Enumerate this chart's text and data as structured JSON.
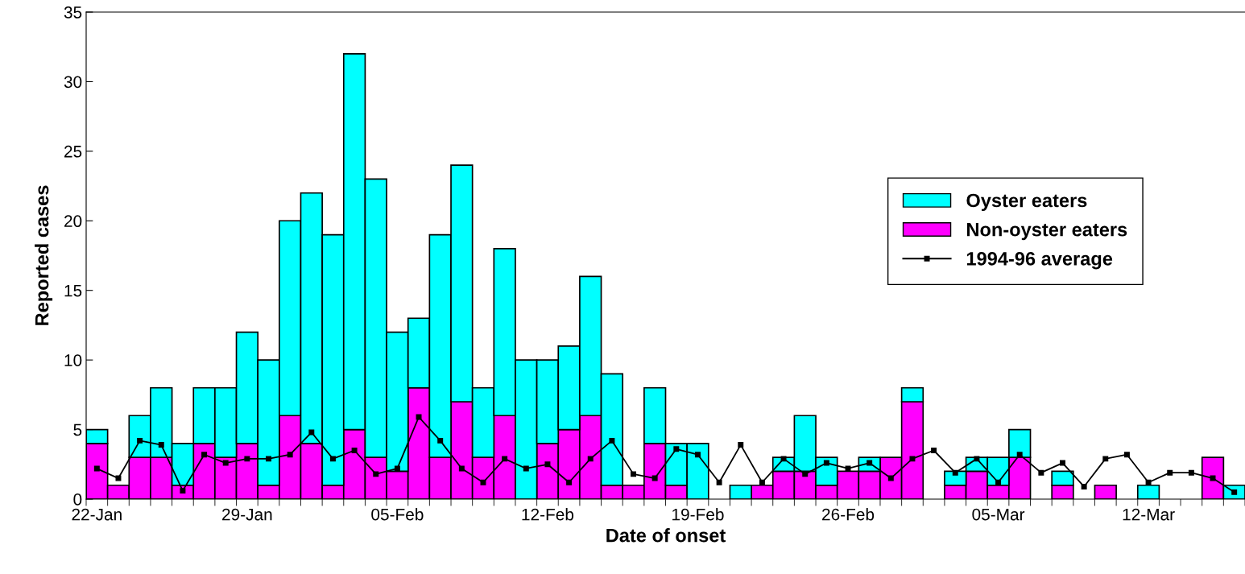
{
  "chart_data": {
    "type": "bar",
    "stacked": true,
    "xlabel": "Date of onset",
    "ylabel": "Reported cases",
    "categories": [
      "22-Jan",
      null,
      null,
      null,
      null,
      null,
      null,
      "29-Jan",
      null,
      null,
      null,
      null,
      null,
      null,
      "05-Feb",
      null,
      null,
      null,
      null,
      null,
      null,
      "12-Feb",
      null,
      null,
      null,
      null,
      null,
      null,
      "19-Feb",
      null,
      null,
      null,
      null,
      null,
      null,
      "26-Feb",
      null,
      null,
      null,
      null,
      null,
      null,
      "05-Mar",
      null,
      null,
      null,
      null,
      null,
      null,
      "12-Mar",
      null,
      null,
      null,
      null
    ],
    "series": [
      {
        "name": "Non-oyster eaters",
        "color": "#ff00ff",
        "values": [
          4,
          1,
          3,
          3,
          1,
          4,
          3,
          4,
          1,
          6,
          4,
          1,
          5,
          3,
          2,
          8,
          3,
          7,
          3,
          6,
          0,
          4,
          5,
          6,
          1,
          1,
          4,
          1,
          0,
          0,
          0,
          1,
          2,
          2,
          1,
          2,
          2,
          3,
          7,
          0,
          1,
          2,
          1,
          3,
          0,
          1,
          0,
          1,
          0,
          0,
          0,
          0,
          3,
          0
        ]
      },
      {
        "name": "Oyster eaters",
        "color": "#00ffff",
        "values": [
          1,
          0,
          3,
          5,
          3,
          4,
          5,
          8,
          9,
          14,
          18,
          18,
          27,
          20,
          10,
          5,
          16,
          17,
          5,
          12,
          10,
          6,
          6,
          10,
          8,
          0,
          4,
          3,
          4,
          0,
          1,
          0,
          1,
          4,
          2,
          0,
          1,
          0,
          1,
          0,
          1,
          1,
          2,
          2,
          0,
          1,
          0,
          0,
          0,
          1,
          0,
          0,
          0,
          1
        ]
      },
      {
        "name": "1994-96 average",
        "type": "line",
        "color": "#000000",
        "marker": "square",
        "line_style": "solid",
        "values": [
          2.2,
          1.5,
          4.2,
          3.9,
          0.6,
          3.2,
          2.6,
          2.9,
          2.9,
          3.2,
          4.8,
          2.9,
          3.5,
          1.8,
          2.2,
          5.9,
          4.2,
          2.2,
          1.2,
          2.9,
          2.2,
          2.5,
          1.2,
          2.9,
          4.2,
          1.8,
          1.5,
          3.6,
          3.2,
          1.2,
          3.9,
          1.2,
          2.9,
          1.8,
          2.6,
          2.2,
          2.6,
          1.5,
          2.9,
          3.5,
          1.9,
          2.9,
          1.2,
          3.2,
          1.9,
          2.6,
          0.9,
          2.9,
          3.2,
          1.2,
          1.9,
          1.9,
          1.5,
          0.5
        ]
      }
    ],
    "ylim": [
      0,
      35
    ],
    "yticks": [
      0,
      5,
      10,
      15,
      20,
      25,
      30,
      35
    ],
    "grid": false,
    "legend": "right"
  }
}
